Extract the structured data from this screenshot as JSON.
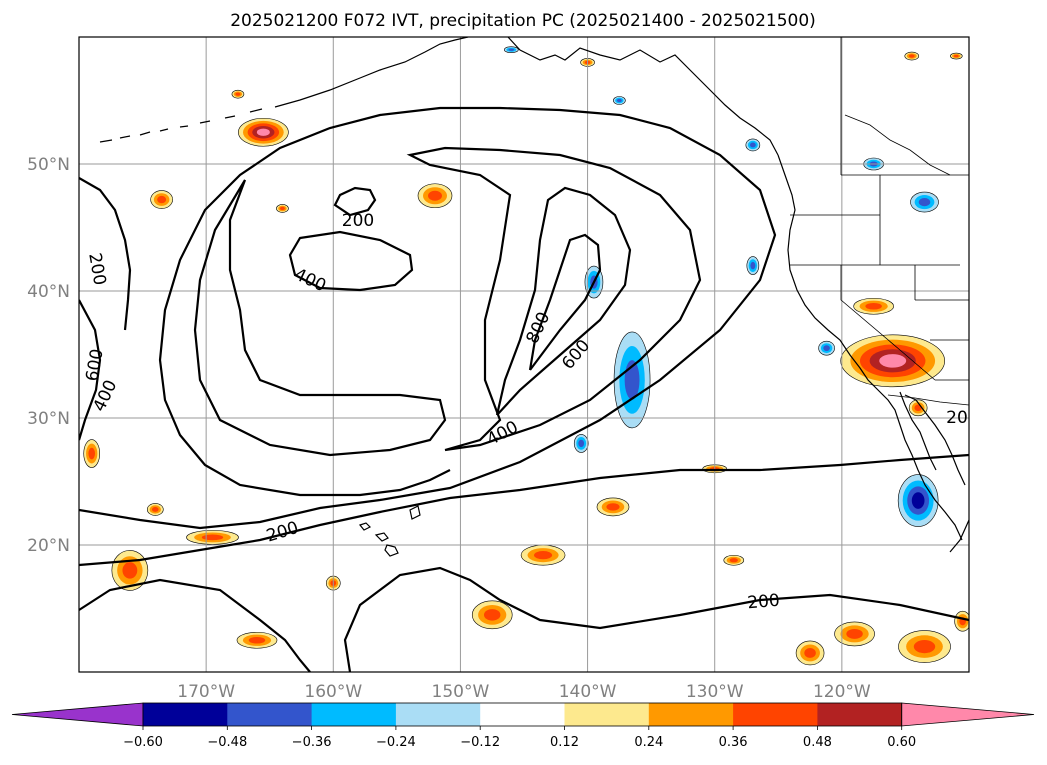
{
  "title": "2025021200 F072 IVT, precipitation PC (2025021400 - 2025021500)",
  "map": {
    "lon_range": [
      -180,
      -110
    ],
    "lat_range": [
      10,
      60
    ],
    "lat_ticks": [
      {
        "value": 20,
        "label": "20°N"
      },
      {
        "value": 30,
        "label": "30°N"
      },
      {
        "value": 40,
        "label": "40°N"
      },
      {
        "value": 50,
        "label": "50°N"
      }
    ],
    "lon_ticks": [
      {
        "value": -170,
        "label": "170°W"
      },
      {
        "value": -160,
        "label": "160°W"
      },
      {
        "value": -150,
        "label": "150°W"
      },
      {
        "value": -140,
        "label": "140°W"
      },
      {
        "value": -130,
        "label": "130°W"
      },
      {
        "value": -120,
        "label": "120°W"
      }
    ],
    "grid": true,
    "ivt_contour_levels": [
      200,
      400,
      600,
      800
    ],
    "contour_labels": [
      "200",
      "200",
      "200",
      "200",
      "200",
      "400",
      "400",
      "400",
      "600",
      "600",
      "800",
      "20"
    ]
  },
  "colorbar": {
    "ticks": [
      "−0.60",
      "−0.48",
      "−0.36",
      "−0.24",
      "−0.12",
      "0.12",
      "0.24",
      "0.36",
      "0.48",
      "0.60"
    ],
    "colors": [
      "#9933cc",
      "#000099",
      "#3355cc",
      "#00bbff",
      "#aaddf5",
      "#ffffff",
      "#fde98e",
      "#ff9900",
      "#ff4400",
      "#b22222",
      "#ff88aa"
    ],
    "extend": "both"
  },
  "precip_patches": [
    {
      "lon": -165.5,
      "lat": 52.5,
      "rx": 25,
      "ry": 14,
      "cat": "pos_high"
    },
    {
      "lon": -173.5,
      "lat": 47.2,
      "rx": 11,
      "ry": 9,
      "cat": "pos_mid"
    },
    {
      "lon": -164.0,
      "lat": 46.5,
      "rx": 6,
      "ry": 4,
      "cat": "pos_mid"
    },
    {
      "lon": -152.0,
      "lat": 47.5,
      "rx": 17,
      "ry": 12,
      "cat": "pos_mid"
    },
    {
      "lon": -176.0,
      "lat": 18.0,
      "rx": 18,
      "ry": 20,
      "cat": "pos_mid"
    },
    {
      "lon": -169.5,
      "lat": 20.6,
      "rx": 26,
      "ry": 7,
      "cat": "pos_mid"
    },
    {
      "lon": -166.0,
      "lat": 12.5,
      "rx": 20,
      "ry": 8,
      "cat": "pos_mid"
    },
    {
      "lon": -160.0,
      "lat": 17.0,
      "rx": 7,
      "ry": 7,
      "cat": "pos_mid"
    },
    {
      "lon": -147.5,
      "lat": 14.5,
      "rx": 20,
      "ry": 14,
      "cat": "pos_mid"
    },
    {
      "lon": -138.0,
      "lat": 23.0,
      "rx": 16,
      "ry": 9,
      "cat": "pos_mid"
    },
    {
      "lon": -143.5,
      "lat": 19.2,
      "rx": 22,
      "ry": 10,
      "cat": "pos_mid"
    },
    {
      "lon": -130.0,
      "lat": 26.0,
      "rx": 12,
      "ry": 4,
      "cat": "pos_mid"
    },
    {
      "lon": -128.5,
      "lat": 18.8,
      "rx": 10,
      "ry": 5,
      "cat": "pos_mid"
    },
    {
      "lon": -119.0,
      "lat": 13.0,
      "rx": 20,
      "ry": 12,
      "cat": "pos_mid"
    },
    {
      "lon": -113.5,
      "lat": 12.0,
      "rx": 26,
      "ry": 16,
      "cat": "pos_mid"
    },
    {
      "lon": -122.5,
      "lat": 11.5,
      "rx": 14,
      "ry": 12,
      "cat": "pos_mid"
    },
    {
      "lon": -117.5,
      "lat": 38.8,
      "rx": 20,
      "ry": 8,
      "cat": "pos_mid"
    },
    {
      "lon": -116.0,
      "lat": 34.5,
      "rx": 52,
      "ry": 26,
      "cat": "pos_high"
    },
    {
      "lon": -114.0,
      "lat": 30.8,
      "rx": 9,
      "ry": 8,
      "cat": "pos_mid"
    },
    {
      "lon": -179.0,
      "lat": 27.2,
      "rx": 8,
      "ry": 14,
      "cat": "pos_mid"
    },
    {
      "lon": -110.5,
      "lat": 14.0,
      "rx": 8,
      "ry": 10,
      "cat": "pos_mid"
    },
    {
      "lon": -174.0,
      "lat": 22.8,
      "rx": 8,
      "ry": 6,
      "cat": "pos_mid"
    },
    {
      "lon": -167.5,
      "lat": 55.5,
      "rx": 6,
      "ry": 4,
      "cat": "pos_mid"
    },
    {
      "lon": -136.5,
      "lat": 33.0,
      "rx": 18,
      "ry": 48,
      "cat": "neg_mid"
    },
    {
      "lon": -139.5,
      "lat": 40.7,
      "rx": 9,
      "ry": 16,
      "cat": "neg_mid"
    },
    {
      "lon": -114.0,
      "lat": 23.5,
      "rx": 20,
      "ry": 26,
      "cat": "neg_high"
    },
    {
      "lon": -113.5,
      "lat": 47.0,
      "rx": 14,
      "ry": 10,
      "cat": "neg_mid"
    },
    {
      "lon": -121.2,
      "lat": 35.5,
      "rx": 8,
      "ry": 7,
      "cat": "neg_mid"
    },
    {
      "lon": -127.0,
      "lat": 42.0,
      "rx": 6,
      "ry": 9,
      "cat": "neg_mid"
    },
    {
      "lon": -140.5,
      "lat": 28.0,
      "rx": 7,
      "ry": 9,
      "cat": "neg_mid"
    },
    {
      "lon": -117.5,
      "lat": 50.0,
      "rx": 10,
      "ry": 6,
      "cat": "neg_mid"
    },
    {
      "lon": -137.5,
      "lat": 55.0,
      "rx": 6,
      "ry": 4,
      "cat": "neg_mid"
    },
    {
      "lon": -127.0,
      "lat": 51.5,
      "rx": 7,
      "ry": 6,
      "cat": "neg_mid"
    },
    {
      "lon": -146.0,
      "lat": 59.0,
      "rx": 7,
      "ry": 3,
      "cat": "neg_mid"
    },
    {
      "lon": -114.5,
      "lat": 58.5,
      "rx": 7,
      "ry": 4,
      "cat": "pos_mid"
    },
    {
      "lon": -111.0,
      "lat": 58.5,
      "rx": 6,
      "ry": 3,
      "cat": "pos_mid"
    },
    {
      "lon": -140.0,
      "lat": 58.0,
      "rx": 7,
      "ry": 4,
      "cat": "pos_mid"
    }
  ]
}
